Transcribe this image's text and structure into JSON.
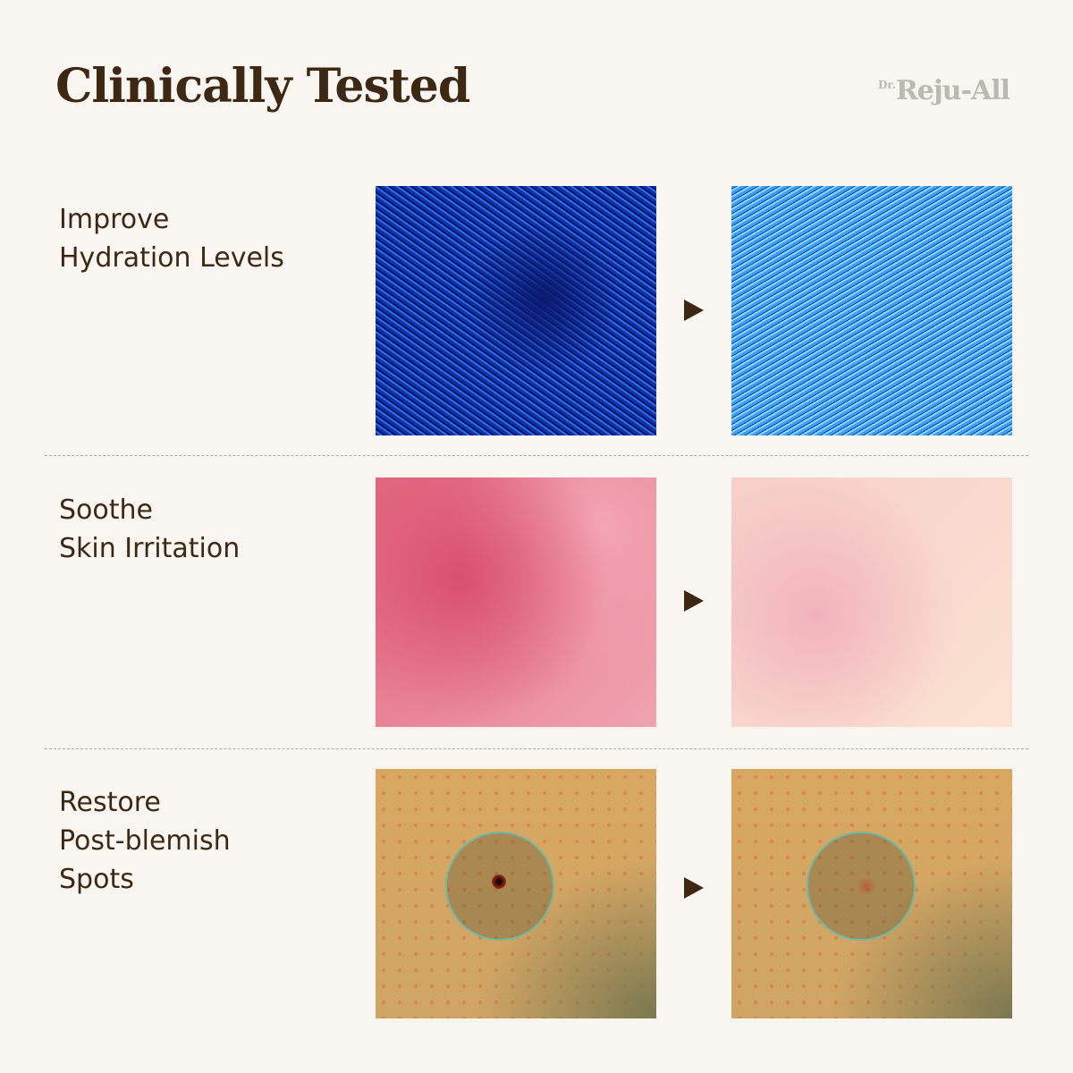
{
  "header": {
    "title": "Clinically Tested",
    "logo_text": "Dr. Reju-All"
  },
  "rows": [
    {
      "label_lines": [
        "Improve",
        "Hydration Levels"
      ],
      "before_image": "hydration-before",
      "after_image": "hydration-after"
    },
    {
      "label_lines": [
        "Soothe",
        "Skin Irritation"
      ],
      "before_image": "irritation-before",
      "after_image": "irritation-after"
    },
    {
      "label_lines": [
        "Restore",
        "Post-blemish",
        "Spots"
      ],
      "before_image": "blemish-before",
      "after_image": "blemish-after"
    }
  ],
  "colors": {
    "background": "#f9f6f2",
    "text": "#3d2913",
    "logo": "#bdb8b1",
    "circle_outline": "#6fb9a3"
  }
}
